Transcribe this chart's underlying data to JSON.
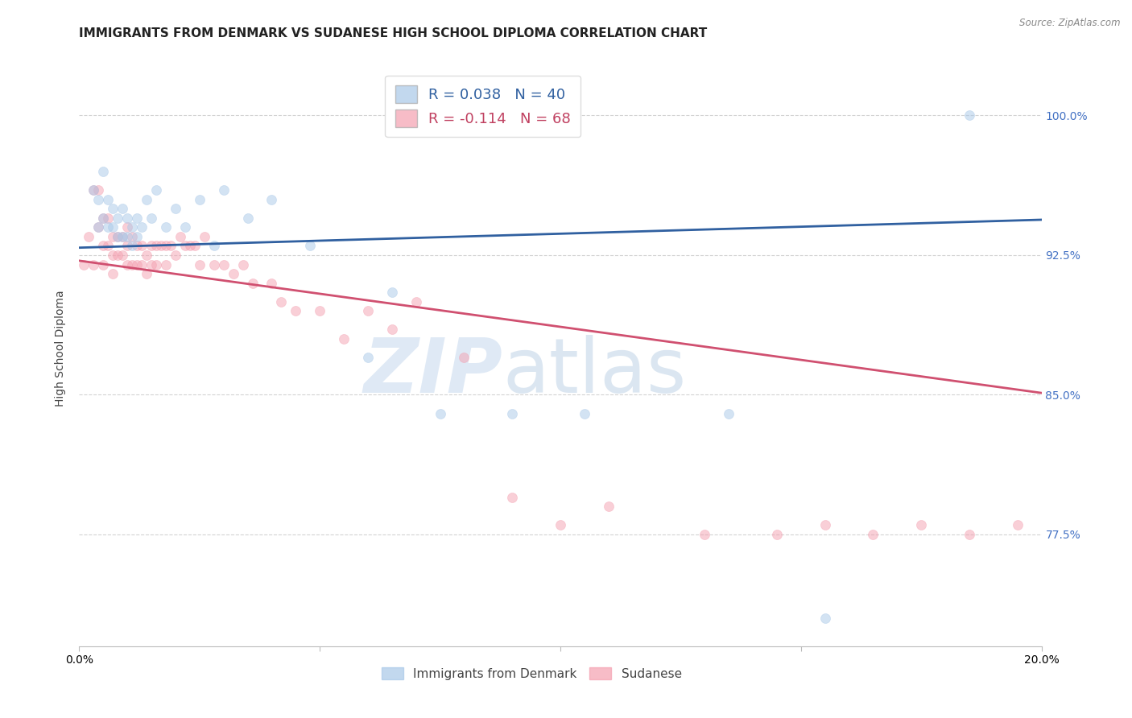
{
  "title": "IMMIGRANTS FROM DENMARK VS SUDANESE HIGH SCHOOL DIPLOMA CORRELATION CHART",
  "source": "Source: ZipAtlas.com",
  "ylabel": "High School Diploma",
  "xlim": [
    0.0,
    0.2
  ],
  "ylim": [
    0.715,
    1.035
  ],
  "yticks": [
    0.775,
    0.85,
    0.925,
    1.0
  ],
  "ytick_labels": [
    "77.5%",
    "85.0%",
    "92.5%",
    "100.0%"
  ],
  "xticks": [
    0.0,
    0.05,
    0.1,
    0.15,
    0.2
  ],
  "xtick_labels": [
    "0.0%",
    "",
    "",
    "",
    "20.0%"
  ],
  "legend_r1": "R = 0.038",
  "legend_n1": "N = 40",
  "legend_r2": "R = -0.114",
  "legend_n2": "N = 68",
  "blue_color": "#a8c8e8",
  "pink_color": "#f4a0b0",
  "blue_line_color": "#3060a0",
  "pink_line_color": "#d05070",
  "watermark_zip": "ZIP",
  "watermark_atlas": "atlas",
  "blue_scatter_x": [
    0.003,
    0.004,
    0.004,
    0.005,
    0.005,
    0.006,
    0.006,
    0.007,
    0.007,
    0.008,
    0.008,
    0.009,
    0.009,
    0.01,
    0.01,
    0.011,
    0.011,
    0.012,
    0.012,
    0.013,
    0.014,
    0.015,
    0.016,
    0.018,
    0.02,
    0.022,
    0.025,
    0.028,
    0.03,
    0.035,
    0.04,
    0.048,
    0.06,
    0.065,
    0.075,
    0.09,
    0.105,
    0.135,
    0.155,
    0.185
  ],
  "blue_scatter_y": [
    0.96,
    0.955,
    0.94,
    0.97,
    0.945,
    0.955,
    0.94,
    0.95,
    0.94,
    0.945,
    0.935,
    0.95,
    0.935,
    0.945,
    0.935,
    0.94,
    0.93,
    0.945,
    0.935,
    0.94,
    0.955,
    0.945,
    0.96,
    0.94,
    0.95,
    0.94,
    0.955,
    0.93,
    0.96,
    0.945,
    0.955,
    0.93,
    0.87,
    0.905,
    0.84,
    0.84,
    0.84,
    0.84,
    0.73,
    1.0
  ],
  "pink_scatter_x": [
    0.001,
    0.002,
    0.003,
    0.003,
    0.004,
    0.004,
    0.005,
    0.005,
    0.005,
    0.006,
    0.006,
    0.007,
    0.007,
    0.007,
    0.008,
    0.008,
    0.009,
    0.009,
    0.01,
    0.01,
    0.01,
    0.011,
    0.011,
    0.012,
    0.012,
    0.013,
    0.013,
    0.014,
    0.014,
    0.015,
    0.015,
    0.016,
    0.016,
    0.017,
    0.018,
    0.018,
    0.019,
    0.02,
    0.021,
    0.022,
    0.023,
    0.024,
    0.025,
    0.026,
    0.028,
    0.03,
    0.032,
    0.034,
    0.036,
    0.04,
    0.042,
    0.045,
    0.05,
    0.055,
    0.06,
    0.065,
    0.07,
    0.08,
    0.09,
    0.1,
    0.11,
    0.13,
    0.145,
    0.155,
    0.165,
    0.175,
    0.185,
    0.195
  ],
  "pink_scatter_y": [
    0.92,
    0.935,
    0.96,
    0.92,
    0.96,
    0.94,
    0.945,
    0.93,
    0.92,
    0.945,
    0.93,
    0.935,
    0.925,
    0.915,
    0.935,
    0.925,
    0.935,
    0.925,
    0.94,
    0.93,
    0.92,
    0.935,
    0.92,
    0.93,
    0.92,
    0.93,
    0.92,
    0.925,
    0.915,
    0.93,
    0.92,
    0.93,
    0.92,
    0.93,
    0.93,
    0.92,
    0.93,
    0.925,
    0.935,
    0.93,
    0.93,
    0.93,
    0.92,
    0.935,
    0.92,
    0.92,
    0.915,
    0.92,
    0.91,
    0.91,
    0.9,
    0.895,
    0.895,
    0.88,
    0.895,
    0.885,
    0.9,
    0.87,
    0.795,
    0.78,
    0.79,
    0.775,
    0.775,
    0.78,
    0.775,
    0.78,
    0.775,
    0.78
  ],
  "blue_trend_x": [
    0.0,
    0.2
  ],
  "blue_trend_y": [
    0.929,
    0.944
  ],
  "pink_trend_x": [
    0.0,
    0.2
  ],
  "pink_trend_y": [
    0.922,
    0.851
  ],
  "background_color": "#ffffff",
  "grid_color": "#c8c8c8",
  "title_fontsize": 11,
  "axis_label_fontsize": 10,
  "tick_fontsize": 10,
  "legend_fontsize": 13,
  "right_tick_color": "#4472c4",
  "scatter_size": 75,
  "scatter_alpha": 0.5,
  "scatter_linewidth": 0.5
}
